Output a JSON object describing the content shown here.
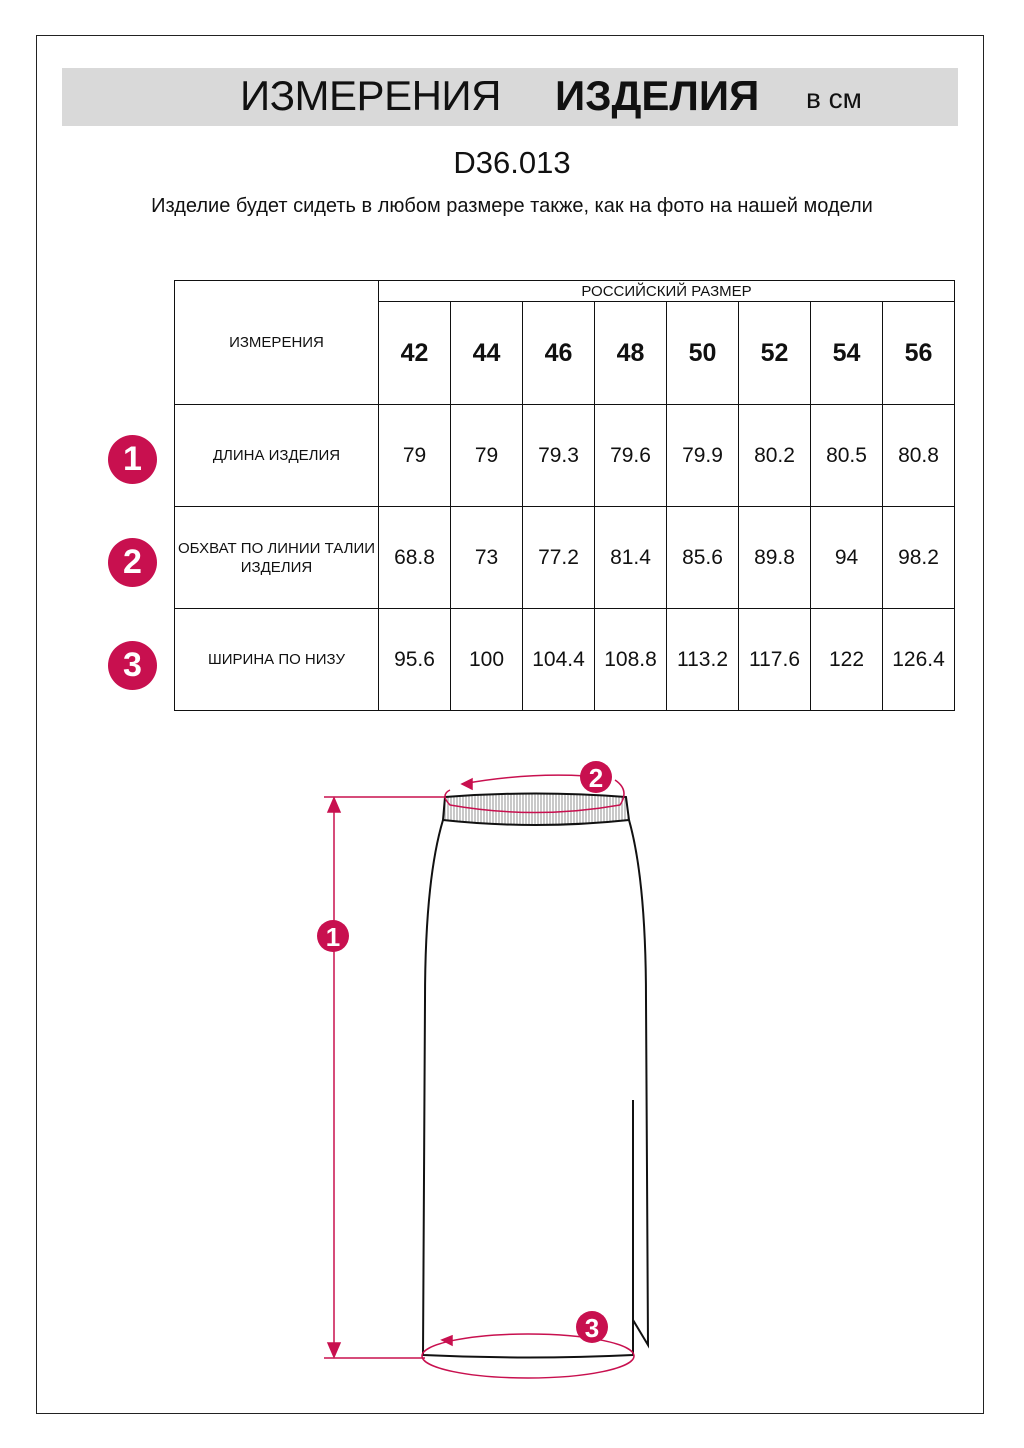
{
  "header": {
    "title_regular": "ИЗМЕРЕНИЯ",
    "title_bold": "ИЗДЕЛИЯ",
    "unit": "в см"
  },
  "article": "D36.013",
  "note": "Изделие будет сидеть в любом размере также, как на фото на нашей модели",
  "accent_color": "#c8104f",
  "table": {
    "measure_header": "ИЗМЕРЕНИЯ",
    "size_group_header": "РОССИЙСКИЙ РАЗМЕР",
    "sizes": [
      "42",
      "44",
      "46",
      "48",
      "50",
      "52",
      "54",
      "56"
    ],
    "rows": [
      {
        "badge": "1",
        "label": "ДЛИНА ИЗДЕЛИЯ",
        "values": [
          "79",
          "79",
          "79.3",
          "79.6",
          "79.9",
          "80.2",
          "80.5",
          "80.8"
        ]
      },
      {
        "badge": "2",
        "label": "ОБХВАТ ПО ЛИНИИ ТАЛИИ ИЗДЕЛИЯ",
        "values": [
          "68.8",
          "73",
          "77.2",
          "81.4",
          "85.6",
          "89.8",
          "94",
          "98.2"
        ]
      },
      {
        "badge": "3",
        "label": "ШИРИНА ПО НИЗУ",
        "values": [
          "95.6",
          "100",
          "104.4",
          "108.8",
          "113.2",
          "117.6",
          "122",
          "126.4"
        ]
      }
    ]
  },
  "diagram": {
    "markers": [
      "1",
      "2",
      "3"
    ]
  }
}
